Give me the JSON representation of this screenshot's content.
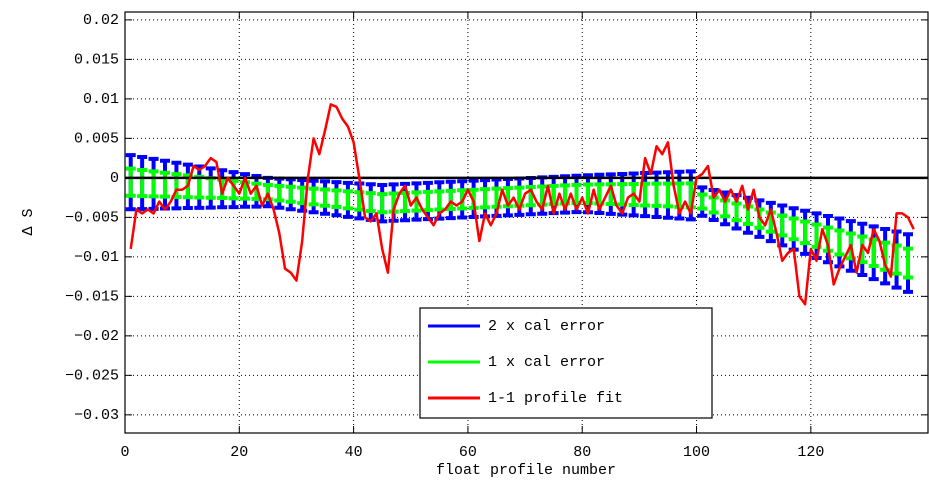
{
  "chart_data": {
    "type": "line",
    "xlabel": "float profile number",
    "ylabel": "Δ S",
    "xlim": [
      0,
      140.5
    ],
    "ylim": [
      -0.0323,
      0.021
    ],
    "xticks": [
      0,
      20,
      40,
      60,
      80,
      100,
      120
    ],
    "yticks": [
      0.02,
      0.015,
      0.01,
      0.005,
      0,
      {
        "value": -0.005,
        "label": "−0.005"
      },
      {
        "value": -0.01,
        "label": "−0.01"
      },
      {
        "value": -0.015,
        "label": "−0.015"
      },
      {
        "value": -0.02,
        "label": "−0.02"
      },
      {
        "value": -0.025,
        "label": "−0.025"
      },
      {
        "value": -0.03,
        "label": "−0.03"
      }
    ],
    "grid": true,
    "reference_line": 0,
    "legend": "lower center",
    "x": [
      1,
      3,
      5,
      7,
      9,
      11,
      13,
      15,
      17,
      19,
      21,
      23,
      25,
      27,
      29,
      31,
      33,
      35,
      37,
      39,
      41,
      43,
      45,
      47,
      49,
      51,
      53,
      55,
      57,
      59,
      61,
      63,
      65,
      67,
      69,
      71,
      73,
      75,
      77,
      79,
      81,
      83,
      85,
      87,
      89,
      91,
      93,
      95,
      97,
      99,
      101,
      103,
      105,
      107,
      109,
      111,
      113,
      115,
      117,
      119,
      121,
      123,
      125,
      127,
      129,
      131,
      133,
      135,
      137
    ],
    "series": [
      {
        "name": "2 x cal error",
        "color": "#0000ff",
        "type": "errorbar",
        "values": [
          -0.00055,
          -0.00066,
          -0.00076,
          -0.00086,
          -0.00097,
          -0.00107,
          -0.00118,
          -0.00128,
          -0.00138,
          -0.00149,
          -0.00159,
          -0.0017,
          -0.0018,
          -0.00194,
          -0.00208,
          -0.00222,
          -0.00236,
          -0.0025,
          -0.00264,
          -0.00278,
          -0.00292,
          -0.00306,
          -0.0032,
          -0.00313,
          -0.00306,
          -0.00299,
          -0.00293,
          -0.00286,
          -0.00279,
          -0.00272,
          -0.00265,
          -0.00258,
          -0.00251,
          -0.00245,
          -0.00238,
          -0.00231,
          -0.00224,
          -0.00217,
          -0.0021,
          -0.00203,
          -0.00201,
          -0.00203,
          -0.00206,
          -0.00208,
          -0.0021,
          -0.00212,
          -0.00214,
          -0.00217,
          -0.00219,
          -0.00221,
          -0.003,
          -0.00343,
          -0.00386,
          -0.0043,
          -0.00473,
          -0.00516,
          -0.00559,
          -0.00602,
          -0.00646,
          -0.00689,
          -0.00732,
          -0.00775,
          -0.00818,
          -0.00862,
          -0.00905,
          -0.00948,
          -0.00991,
          -0.01034,
          -0.01078
        ],
        "errors": [
          0.00343,
          0.0033,
          0.00316,
          0.00302,
          0.00289,
          0.00275,
          0.00262,
          0.00248,
          0.00234,
          0.00221,
          0.00207,
          0.00194,
          0.0018,
          0.00185,
          0.0019,
          0.00195,
          0.002,
          0.00205,
          0.0021,
          0.00215,
          0.0022,
          0.00225,
          0.0023,
          0.0023,
          0.0023,
          0.0023,
          0.0023,
          0.0023,
          0.0023,
          0.0023,
          0.0023,
          0.0023,
          0.0023,
          0.0023,
          0.0023,
          0.0023,
          0.0023,
          0.0023,
          0.0023,
          0.0023,
          0.00234,
          0.00242,
          0.0025,
          0.00257,
          0.00265,
          0.00273,
          0.00281,
          0.00288,
          0.00296,
          0.00304,
          0.0018,
          0.0019,
          0.00201,
          0.00211,
          0.00221,
          0.00231,
          0.00242,
          0.00252,
          0.00262,
          0.00273,
          0.00283,
          0.00293,
          0.00303,
          0.00314,
          0.00324,
          0.00334,
          0.00344,
          0.00355,
          0.00365
        ]
      },
      {
        "name": "1 x cal error",
        "color": "#00ff00",
        "type": "errorbar",
        "values": [
          -0.00055,
          -0.00066,
          -0.00076,
          -0.00086,
          -0.00097,
          -0.00107,
          -0.00118,
          -0.00128,
          -0.00138,
          -0.00149,
          -0.00159,
          -0.0017,
          -0.0018,
          -0.00194,
          -0.00208,
          -0.00222,
          -0.00236,
          -0.0025,
          -0.00264,
          -0.00278,
          -0.00292,
          -0.00306,
          -0.0032,
          -0.00313,
          -0.00306,
          -0.00299,
          -0.00293,
          -0.00286,
          -0.00279,
          -0.00272,
          -0.00265,
          -0.00258,
          -0.00251,
          -0.00245,
          -0.00238,
          -0.00231,
          -0.00224,
          -0.00217,
          -0.0021,
          -0.00203,
          -0.00201,
          -0.00203,
          -0.00206,
          -0.00208,
          -0.0021,
          -0.00212,
          -0.00214,
          -0.00217,
          -0.00219,
          -0.00221,
          -0.003,
          -0.00343,
          -0.00386,
          -0.0043,
          -0.00473,
          -0.00516,
          -0.00559,
          -0.00602,
          -0.00646,
          -0.00689,
          -0.00732,
          -0.00775,
          -0.00818,
          -0.00862,
          -0.00905,
          -0.00948,
          -0.00991,
          -0.01034,
          -0.01078
        ],
        "errors": [
          0.00172,
          0.00165,
          0.00158,
          0.00151,
          0.00145,
          0.00138,
          0.00131,
          0.00124,
          0.00117,
          0.00111,
          0.00104,
          0.00097,
          0.0009,
          0.00093,
          0.00095,
          0.00098,
          0.001,
          0.00103,
          0.00105,
          0.00108,
          0.0011,
          0.00113,
          0.00115,
          0.00115,
          0.00115,
          0.00115,
          0.00115,
          0.00115,
          0.00115,
          0.00115,
          0.00115,
          0.00115,
          0.00115,
          0.00115,
          0.00115,
          0.00115,
          0.00115,
          0.00115,
          0.00115,
          0.00115,
          0.00117,
          0.00121,
          0.00125,
          0.00129,
          0.00133,
          0.00137,
          0.00141,
          0.00144,
          0.00148,
          0.00152,
          0.0009,
          0.00095,
          0.00101,
          0.00106,
          0.00111,
          0.00116,
          0.00121,
          0.00126,
          0.00131,
          0.00137,
          0.00142,
          0.00147,
          0.00152,
          0.00157,
          0.00162,
          0.00167,
          0.00172,
          0.00178,
          0.00183
        ]
      },
      {
        "name": "1-1 profile fit",
        "color": "#ff0000",
        "type": "line",
        "x": [
          1,
          2,
          3,
          4,
          5,
          6,
          7,
          8,
          9,
          10,
          11,
          12,
          13,
          14,
          15,
          16,
          17,
          18,
          19,
          20,
          21,
          22,
          23,
          24,
          25,
          26,
          27,
          28,
          29,
          30,
          31,
          32,
          33,
          34,
          35,
          36,
          37,
          38,
          39,
          40,
          41,
          42,
          43,
          44,
          45,
          46,
          47,
          48,
          49,
          50,
          51,
          52,
          53,
          54,
          55,
          56,
          57,
          58,
          59,
          60,
          61,
          62,
          63,
          64,
          65,
          66,
          67,
          68,
          69,
          70,
          71,
          72,
          73,
          74,
          75,
          76,
          77,
          78,
          79,
          80,
          81,
          82,
          83,
          84,
          85,
          86,
          87,
          88,
          89,
          90,
          91,
          92,
          93,
          94,
          95,
          96,
          97,
          98,
          99,
          100,
          101,
          102,
          103,
          104,
          105,
          106,
          107,
          108,
          109,
          110,
          111,
          112,
          113,
          114,
          115,
          116,
          117,
          118,
          119,
          120,
          121,
          122,
          123,
          124,
          125,
          126,
          127,
          128,
          129,
          130,
          131,
          132,
          133,
          134,
          135,
          136,
          137,
          138
        ],
        "values": [
          -0.009,
          -0.004,
          -0.0045,
          -0.004,
          -0.0045,
          -0.003,
          -0.004,
          -0.003,
          -0.0015,
          -0.0015,
          -0.001,
          0.0015,
          0.001,
          0.0015,
          0.0025,
          0.002,
          -0.002,
          0,
          -0.001,
          -0.002,
          0,
          -0.002,
          -0.001,
          -0.0035,
          -0.002,
          -0.004,
          -0.007,
          -0.0115,
          -0.012,
          -0.013,
          -0.008,
          0,
          0.005,
          0.003,
          0.006,
          0.0093,
          0.009,
          0.0075,
          0.0065,
          0.0045,
          0,
          -0.005,
          -0.0055,
          -0.0045,
          -0.009,
          -0.012,
          -0.004,
          -0.002,
          -0.001,
          -0.0035,
          -0.0025,
          -0.004,
          -0.005,
          -0.006,
          -0.0045,
          -0.004,
          -0.003,
          -0.0035,
          -0.003,
          -0.0015,
          -0.003,
          -0.008,
          -0.0045,
          -0.006,
          -0.0045,
          -0.0015,
          -0.0035,
          -0.0025,
          -0.004,
          -0.002,
          -0.0015,
          -0.003,
          -0.004,
          -0.001,
          -0.0045,
          -0.002,
          -0.004,
          -0.002,
          -0.004,
          -0.0025,
          -0.0045,
          -0.0015,
          -0.004,
          -0.0025,
          -0.001,
          -0.0035,
          -0.0045,
          -0.0025,
          -0.002,
          -0.003,
          0.0025,
          0.0005,
          0.004,
          0.003,
          0.0045,
          -0.001,
          -0.0045,
          -0.003,
          -0.0045,
          0,
          0.0005,
          0.0015,
          -0.0025,
          -0.0015,
          -0.003,
          -0.0015,
          -0.003,
          -0.001,
          -0.004,
          -0.0015,
          -0.005,
          -0.006,
          -0.004,
          -0.007,
          -0.0105,
          -0.0095,
          -0.009,
          -0.015,
          -0.016,
          -0.009,
          -0.0105,
          -0.0065,
          -0.0085,
          -0.0135,
          -0.0115,
          -0.01,
          -0.0085,
          -0.012,
          -0.0085,
          -0.0095,
          -0.0065,
          -0.008,
          -0.011,
          -0.0125,
          -0.0045,
          -0.0045,
          -0.005,
          -0.0065
        ]
      }
    ]
  }
}
